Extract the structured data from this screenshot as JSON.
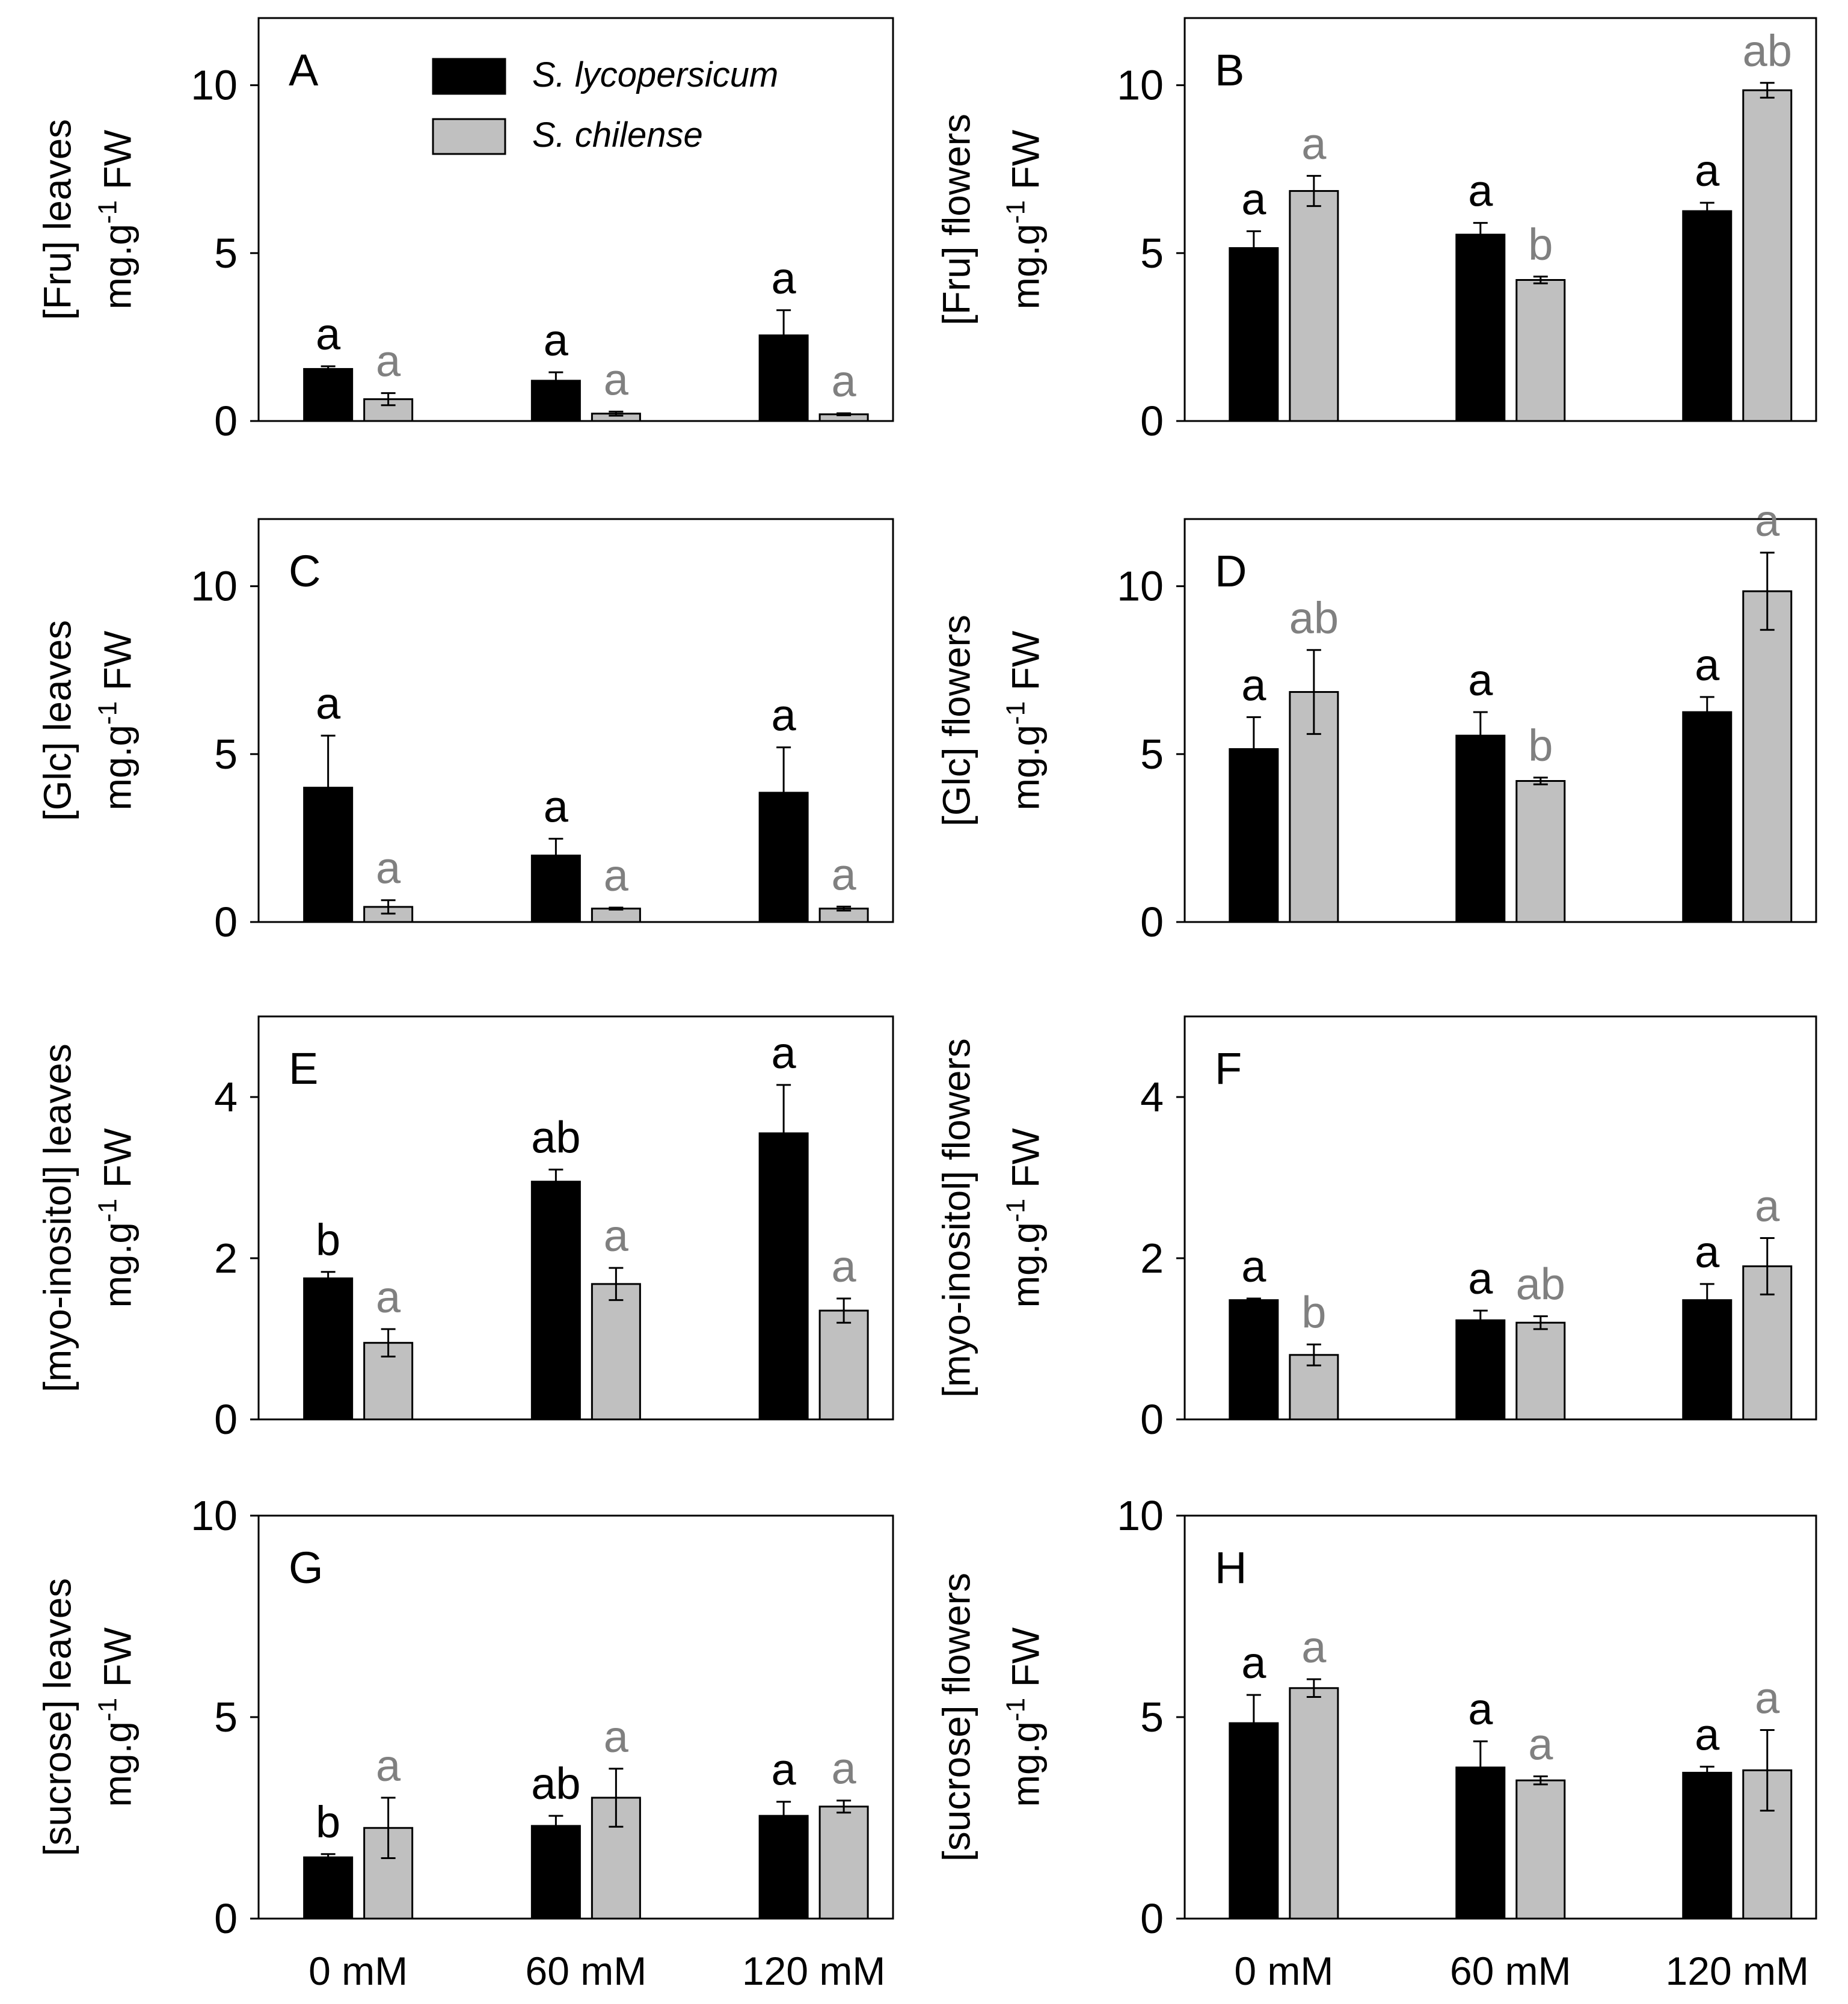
{
  "colors": {
    "lycopersicum_bar": "#000000",
    "chilense_bar": "#c0c0c0",
    "lycopersicum_label": "#000000",
    "chilense_label": "#808080"
  },
  "legend": {
    "items": [
      {
        "name": "S. lycopersicum",
        "color": "#000000"
      },
      {
        "name": "S. chilense",
        "color": "#c0c0c0"
      }
    ]
  },
  "chart_data": [
    {
      "panel": "A",
      "type": "bar",
      "ylabel_line1": "[Fru] leaves",
      "ylabel_line2": "mg.g",
      "ylabel_sup": "-1",
      "ylabel_line2_tail": " FW",
      "ylim": [
        0,
        12
      ],
      "yticks": [
        "0",
        "5",
        "10"
      ],
      "ytick_values": [
        0,
        5,
        10
      ],
      "categories": [
        "0 mM",
        "60 mM",
        "120 mM"
      ],
      "series": [
        {
          "name": "S. lycopersicum",
          "values": [
            1.55,
            1.2,
            2.55
          ],
          "errors": [
            0.08,
            0.25,
            0.75
          ],
          "labels": [
            "a",
            "a",
            "a"
          ]
        },
        {
          "name": "S. chilense",
          "values": [
            0.65,
            0.22,
            0.2
          ],
          "errors": [
            0.18,
            0.06,
            0.03
          ],
          "labels": [
            "a",
            "a",
            "a"
          ]
        }
      ]
    },
    {
      "panel": "B",
      "type": "bar",
      "ylabel_line1": "[Fru] flowers",
      "ylabel_line2": "mg.g",
      "ylabel_sup": "-1",
      "ylabel_line2_tail": " FW",
      "ylim": [
        0,
        12
      ],
      "yticks": [
        "0",
        "5",
        "10"
      ],
      "ytick_values": [
        0,
        5,
        10
      ],
      "categories": [
        "0 mM",
        "60 mM",
        "120 mM"
      ],
      "series": [
        {
          "name": "S. lycopersicum",
          "values": [
            5.15,
            5.55,
            6.25
          ],
          "errors": [
            0.5,
            0.35,
            0.25
          ],
          "labels": [
            "a",
            "a",
            "a"
          ]
        },
        {
          "name": "S. chilense",
          "values": [
            6.85,
            4.2,
            9.85
          ],
          "errors": [
            0.45,
            0.1,
            0.22
          ],
          "labels": [
            "a",
            "b",
            "ab"
          ]
        }
      ]
    },
    {
      "panel": "C",
      "type": "bar",
      "ylabel_line1": "[Glc] leaves",
      "ylabel_line2": "mg.g",
      "ylabel_sup": "-1",
      "ylabel_line2_tail": " FW",
      "ylim": [
        0,
        12
      ],
      "yticks": [
        "0",
        "5",
        "10"
      ],
      "ytick_values": [
        0,
        5,
        10
      ],
      "categories": [
        "0 mM",
        "60 mM",
        "120 mM"
      ],
      "series": [
        {
          "name": "S. lycopersicum",
          "values": [
            4.0,
            1.98,
            3.85
          ],
          "errors": [
            1.55,
            0.5,
            1.35
          ],
          "labels": [
            "a",
            "a",
            "a"
          ]
        },
        {
          "name": "S. chilense",
          "values": [
            0.45,
            0.4,
            0.4
          ],
          "errors": [
            0.2,
            0.03,
            0.06
          ],
          "labels": [
            "a",
            "a",
            "a"
          ]
        }
      ]
    },
    {
      "panel": "D",
      "type": "bar",
      "ylabel_line1": "[Glc] flowers",
      "ylabel_line2": "mg.g",
      "ylabel_sup": "-1",
      "ylabel_line2_tail": " FW",
      "ylim": [
        0,
        12
      ],
      "yticks": [
        "0",
        "5",
        "10"
      ],
      "ytick_values": [
        0,
        5,
        10
      ],
      "categories": [
        "0 mM",
        "60 mM",
        "120 mM"
      ],
      "series": [
        {
          "name": "S. lycopersicum",
          "values": [
            5.15,
            5.55,
            6.25
          ],
          "errors": [
            0.95,
            0.7,
            0.45
          ],
          "labels": [
            "a",
            "a",
            "a"
          ]
        },
        {
          "name": "S. chilense",
          "values": [
            6.85,
            4.2,
            9.85
          ],
          "errors": [
            1.25,
            0.1,
            1.15
          ],
          "labels": [
            "ab",
            "b",
            "a"
          ]
        }
      ]
    },
    {
      "panel": "E",
      "type": "bar",
      "ylabel_line1": "[myo-inositol] leaves",
      "ylabel_line2": "mg.g",
      "ylabel_sup": "-1",
      "ylabel_line2_tail": " FW",
      "ylim": [
        0,
        5
      ],
      "yticks": [
        "0",
        "2",
        "4"
      ],
      "ytick_values": [
        0,
        2,
        4
      ],
      "categories": [
        "0 mM",
        "60 mM",
        "120 mM"
      ],
      "series": [
        {
          "name": "S. lycopersicum",
          "values": [
            1.75,
            2.95,
            3.55
          ],
          "errors": [
            0.08,
            0.15,
            0.6
          ],
          "labels": [
            "b",
            "ab",
            "a"
          ]
        },
        {
          "name": "S. chilense",
          "values": [
            0.95,
            1.68,
            1.35
          ],
          "errors": [
            0.17,
            0.2,
            0.15
          ],
          "labels": [
            "a",
            "a",
            "a"
          ]
        }
      ]
    },
    {
      "panel": "F",
      "type": "bar",
      "ylabel_line1": "[myo-inositol] flowers",
      "ylabel_line2": "mg.g",
      "ylabel_sup": "-1",
      "ylabel_line2_tail": " FW",
      "ylim": [
        0,
        5
      ],
      "yticks": [
        "0",
        "2",
        "4"
      ],
      "ytick_values": [
        0,
        2,
        4
      ],
      "categories": [
        "0 mM",
        "60 mM",
        "120 mM"
      ],
      "series": [
        {
          "name": "S. lycopersicum",
          "values": [
            1.48,
            1.23,
            1.48
          ],
          "errors": [
            0.02,
            0.12,
            0.2
          ],
          "labels": [
            "a",
            "a",
            "a"
          ]
        },
        {
          "name": "S. chilense",
          "values": [
            0.8,
            1.2,
            1.9
          ],
          "errors": [
            0.13,
            0.08,
            0.35
          ],
          "labels": [
            "b",
            "ab",
            "a"
          ]
        }
      ]
    },
    {
      "panel": "G",
      "type": "bar",
      "ylabel_line1": "[sucrose] leaves",
      "ylabel_line2": "mg.g",
      "ylabel_sup": "-1",
      "ylabel_line2_tail": " FW",
      "ylim": [
        0,
        10
      ],
      "yticks": [
        "0",
        "5",
        "10"
      ],
      "ytick_values": [
        0,
        5,
        10
      ],
      "categories": [
        "0 mM",
        "60 mM",
        "120 mM"
      ],
      "series": [
        {
          "name": "S. lycopersicum",
          "values": [
            1.52,
            2.3,
            2.55
          ],
          "errors": [
            0.08,
            0.25,
            0.35
          ],
          "labels": [
            "b",
            "ab",
            "a"
          ]
        },
        {
          "name": "S. chilense",
          "values": [
            2.25,
            3.0,
            2.78
          ],
          "errors": [
            0.75,
            0.72,
            0.15
          ],
          "labels": [
            "a",
            "a",
            "a"
          ]
        }
      ]
    },
    {
      "panel": "H",
      "type": "bar",
      "ylabel_line1": "[sucrose] flowers",
      "ylabel_line2": "mg.g",
      "ylabel_sup": "-1",
      "ylabel_line2_tail": " FW",
      "ylim": [
        0,
        10
      ],
      "yticks": [
        "0",
        "5",
        "10"
      ],
      "ytick_values": [
        0,
        5,
        10
      ],
      "categories": [
        "0 mM",
        "60 mM",
        "120 mM"
      ],
      "series": [
        {
          "name": "S. lycopersicum",
          "values": [
            4.85,
            3.75,
            3.62
          ],
          "errors": [
            0.7,
            0.65,
            0.15
          ],
          "labels": [
            "a",
            "a",
            "a"
          ]
        },
        {
          "name": "S. chilense",
          "values": [
            5.72,
            3.43,
            3.68
          ],
          "errors": [
            0.22,
            0.1,
            1.0
          ],
          "labels": [
            "a",
            "a",
            "a"
          ]
        }
      ]
    }
  ]
}
